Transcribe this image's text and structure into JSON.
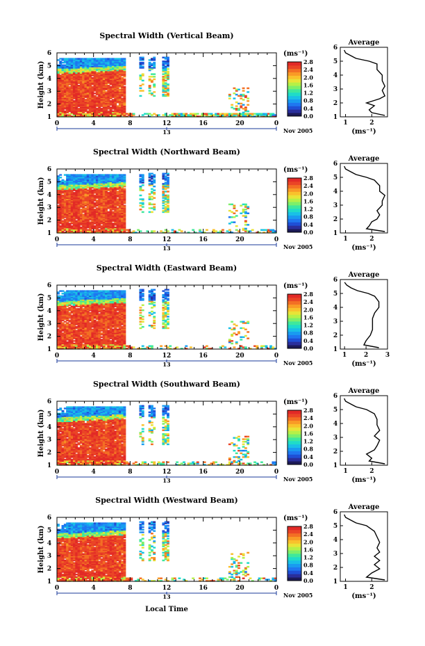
{
  "figure": {
    "xlabel": "Local Time",
    "date_label": "Nov 2005",
    "day_label": "13",
    "unit_label": "(ms⁻¹)",
    "avg_title": "Average",
    "avg_xlabel": "(ms⁻¹)"
  },
  "colorbar": {
    "ticks": [
      "2.8",
      "2.4",
      "2.0",
      "1.6",
      "1.2",
      "0.8",
      "0.4",
      "0.0"
    ],
    "colors": [
      "#1c1a58",
      "#2a2f9c",
      "#1f4fd6",
      "#1f77f0",
      "#199bf0",
      "#19c0e6",
      "#1fdcc8",
      "#3fe89c",
      "#7def6a",
      "#b6f047",
      "#e9e337",
      "#f9c12c",
      "#f99a26",
      "#f36f24",
      "#ea4526",
      "#e22a27"
    ]
  },
  "chart_data": [
    {
      "type": "heatmap",
      "title": "Spectral Width (Vertical Beam)",
      "ylabel": "Height (km)",
      "x_ticks": [
        "0",
        "4",
        "8",
        "12",
        "16",
        "20",
        "0"
      ],
      "y_ticks": [
        "1",
        "2",
        "3",
        "4",
        "5",
        "6"
      ],
      "xlim": [
        0,
        24
      ],
      "ylim": [
        1,
        6
      ],
      "value_range": [
        0.0,
        2.8
      ],
      "profile": {
        "title": "Average",
        "xlabel": "(ms⁻¹)",
        "x_ticks": [
          "1",
          "2"
        ],
        "xlim": [
          0.8,
          2.6
        ],
        "heights": [
          1.1,
          1.3,
          1.5,
          1.8,
          2.0,
          2.3,
          2.5,
          2.9,
          3.2,
          3.6,
          4.0,
          4.4,
          4.8,
          5.0,
          5.2,
          5.4,
          5.6,
          5.8
        ],
        "values": [
          2.5,
          2.0,
          1.9,
          2.1,
          1.8,
          2.3,
          2.5,
          2.4,
          2.5,
          2.4,
          2.4,
          2.2,
          2.2,
          1.9,
          1.4,
          1.2,
          1.0,
          0.95
        ]
      }
    },
    {
      "type": "heatmap",
      "title": "Spectral Width (Northward Beam)",
      "ylabel": "Height (km)",
      "x_ticks": [
        "0",
        "4",
        "8",
        "12",
        "16",
        "20",
        "0"
      ],
      "y_ticks": [
        "1",
        "2",
        "3",
        "4",
        "5",
        "6"
      ],
      "xlim": [
        0,
        24
      ],
      "ylim": [
        1,
        6
      ],
      "value_range": [
        0.0,
        2.8
      ],
      "profile": {
        "title": "Average",
        "xlabel": "(ms⁻¹)",
        "x_ticks": [
          "1",
          "2"
        ],
        "xlim": [
          0.8,
          2.6
        ],
        "heights": [
          1.1,
          1.3,
          1.5,
          1.8,
          2.0,
          2.3,
          2.6,
          3.0,
          3.3,
          3.7,
          4.0,
          4.4,
          4.8,
          5.0,
          5.2,
          5.4,
          5.6,
          5.8
        ],
        "values": [
          2.5,
          1.8,
          1.9,
          2.0,
          2.2,
          2.3,
          2.2,
          2.4,
          2.4,
          2.5,
          2.3,
          2.3,
          2.1,
          1.8,
          1.4,
          1.2,
          1.0,
          0.95
        ]
      }
    },
    {
      "type": "heatmap",
      "title": "Spectral Width (Eastward Beam)",
      "ylabel": "Height (km)",
      "x_ticks": [
        "0",
        "4",
        "8",
        "12",
        "16",
        "20",
        "0"
      ],
      "y_ticks": [
        "1",
        "2",
        "3",
        "4",
        "5",
        "6"
      ],
      "xlim": [
        0,
        24
      ],
      "ylim": [
        1,
        6
      ],
      "value_range": [
        0.0,
        2.8
      ],
      "profile": {
        "title": "Average",
        "xlabel": "(ms⁻¹)",
        "x_ticks": [
          "1",
          "2",
          "3"
        ],
        "xlim": [
          0.8,
          3.0
        ],
        "heights": [
          1.1,
          1.3,
          1.6,
          2.0,
          2.4,
          2.8,
          3.2,
          3.6,
          4.0,
          4.4,
          4.8,
          5.0,
          5.2,
          5.4,
          5.6,
          5.8
        ],
        "values": [
          2.6,
          1.9,
          2.0,
          2.2,
          2.3,
          2.3,
          2.3,
          2.4,
          2.6,
          2.6,
          2.4,
          2.1,
          1.6,
          1.3,
          1.1,
          1.0
        ]
      }
    },
    {
      "type": "heatmap",
      "title": "Spectral Width (Southward Beam)",
      "ylabel": "Height (km)",
      "x_ticks": [
        "0",
        "4",
        "8",
        "12",
        "16",
        "20",
        "0"
      ],
      "y_ticks": [
        "1",
        "2",
        "3",
        "4",
        "5",
        "6"
      ],
      "xlim": [
        0,
        24
      ],
      "ylim": [
        1,
        6
      ],
      "value_range": [
        0.0,
        2.8
      ],
      "profile": {
        "title": "Average",
        "xlabel": "(ms⁻¹)",
        "x_ticks": [
          "1",
          "2"
        ],
        "xlim": [
          0.8,
          2.6
        ],
        "heights": [
          1.1,
          1.3,
          1.5,
          1.8,
          2.1,
          2.4,
          2.8,
          3.1,
          3.5,
          3.9,
          4.3,
          4.7,
          5.0,
          5.2,
          5.4,
          5.6,
          5.8
        ],
        "values": [
          2.5,
          1.9,
          2.0,
          1.8,
          2.1,
          2.2,
          2.3,
          2.1,
          2.3,
          2.2,
          2.2,
          2.1,
          1.8,
          1.4,
          1.2,
          1.0,
          0.95
        ]
      }
    },
    {
      "type": "heatmap",
      "title": "Spectral Width (Westward Beam)",
      "ylabel": "Height (km)",
      "x_ticks": [
        "0",
        "4",
        "8",
        "12",
        "16",
        "20",
        "0"
      ],
      "y_ticks": [
        "1",
        "2",
        "3",
        "4",
        "5",
        "6"
      ],
      "xlim": [
        0,
        24
      ],
      "ylim": [
        1,
        6
      ],
      "value_range": [
        0.0,
        2.8
      ],
      "profile": {
        "title": "Average",
        "xlabel": "(ms⁻¹)",
        "x_ticks": [
          "1",
          "2"
        ],
        "xlim": [
          0.8,
          2.6
        ],
        "heights": [
          1.1,
          1.3,
          1.6,
          1.9,
          2.2,
          2.5,
          2.8,
          3.1,
          3.4,
          3.8,
          4.2,
          4.6,
          5.0,
          5.2,
          5.4,
          5.6,
          5.8
        ],
        "values": [
          2.5,
          1.8,
          2.0,
          2.3,
          2.1,
          2.3,
          2.1,
          2.3,
          2.2,
          2.3,
          2.2,
          2.1,
          1.8,
          1.4,
          1.2,
          1.0,
          0.95
        ]
      }
    }
  ]
}
